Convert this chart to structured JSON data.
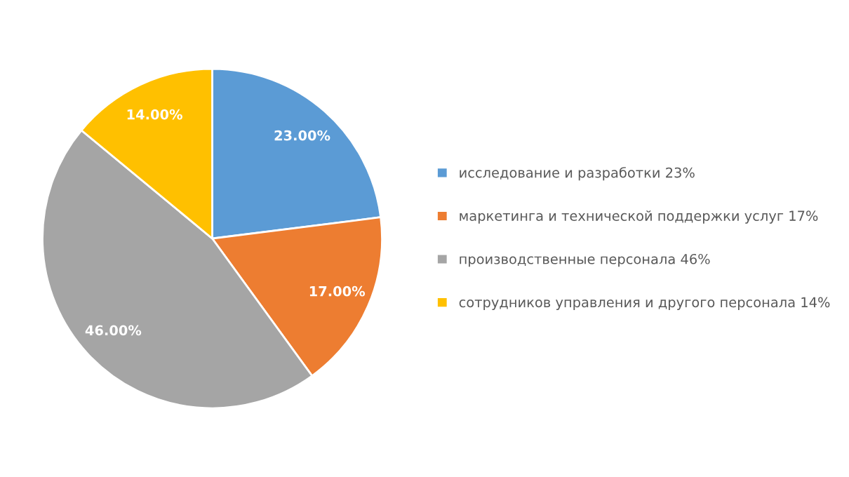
{
  "chart_data": {
    "type": "pie",
    "categories": [
      "исследование и разработки 23%",
      "маркетинга и технической поддержки услуг 17%",
      "производственные персонала 46%",
      "сотрудников управления и другого персонала 14%"
    ],
    "values": [
      23,
      17,
      46,
      14
    ],
    "colors": [
      "#5b9bd5",
      "#ed7d31",
      "#a5a5a5",
      "#ffc000"
    ],
    "value_labels": [
      "23.00%",
      "17.00%",
      "46.00%",
      "14.00%"
    ],
    "legend": "right"
  }
}
